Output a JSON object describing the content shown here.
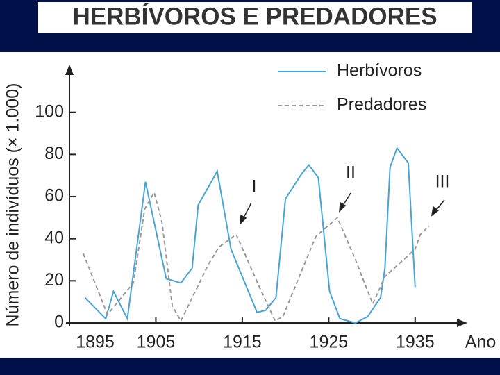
{
  "chart_data": {
    "type": "line",
    "title": "HERBÍVOROS E PREDADORES",
    "y_label": "Número de indivíduos (× 1.000)",
    "x_label": "Ano",
    "xlim": [
      1895,
      1940.8
    ],
    "ylim": [
      0,
      122
    ],
    "xticks": [
      1895,
      1905,
      1915,
      1925,
      1935
    ],
    "yticks": [
      0,
      20,
      40,
      60,
      80,
      100
    ],
    "annotations": [
      "I",
      "II",
      "III"
    ],
    "series": [
      {
        "name": "Herbívoros",
        "color": "#4aa3d6",
        "style": "solid",
        "x": [
          1896.8,
          1899.2,
          1900.1,
          1901.7,
          1903.8,
          1906.2,
          1907.9,
          1909.2,
          1909.9,
          1912.1,
          1913.7,
          1916.7,
          1917.7,
          1918.9,
          1920,
          1921.9,
          1922.7,
          1923.8,
          1925.1,
          1926.3,
          1928.1,
          1929.5,
          1931,
          1931.5,
          1932.1,
          1932.9,
          1934.2,
          1935
        ],
        "values": [
          12,
          2,
          15,
          2,
          67,
          21,
          19,
          26,
          56,
          72,
          35,
          5,
          6,
          12,
          59,
          71,
          75,
          69,
          15,
          2,
          0,
          3,
          12,
          26,
          74,
          83,
          76,
          17
        ]
      },
      {
        "name": "Predadores",
        "color": "#999999",
        "style": "dashed",
        "x": [
          1896.6,
          1899.4,
          1902.4,
          1903.7,
          1904.8,
          1905.7,
          1906.9,
          1907.9,
          1911.1,
          1912.3,
          1914.3,
          1917.1,
          1918.8,
          1919.7,
          1923.5,
          1926,
          1928,
          1930.1,
          1931.5,
          1935,
          1935.6,
          1936.6
        ],
        "values": [
          33,
          4,
          19,
          54,
          62,
          48,
          8,
          1,
          28,
          36,
          42,
          16,
          1,
          3,
          41,
          50,
          31,
          9,
          22,
          35,
          42,
          46
        ]
      }
    ]
  }
}
